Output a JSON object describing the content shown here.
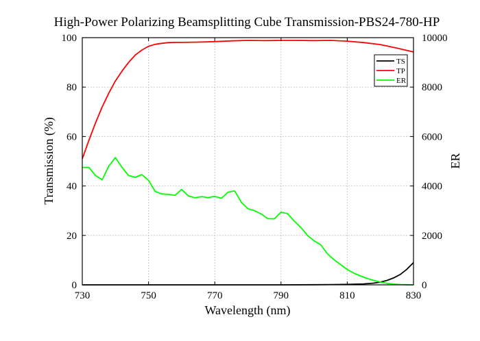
{
  "chart_data": {
    "type": "line",
    "title": "High-Power Polarizing Beamsplitting Cube Transmission-PBS24-780-HP",
    "xlabel": "Wavelength (nm)",
    "ylabel": "Transmission (%)",
    "y2label": "ER",
    "xlim": [
      730,
      830
    ],
    "ylim": [
      0,
      100
    ],
    "y2lim": [
      0,
      10000
    ],
    "xticks": [
      "730",
      "750",
      "770",
      "790",
      "810",
      "830"
    ],
    "yticks": [
      "0",
      "20",
      "40",
      "60",
      "80",
      "100"
    ],
    "y2ticks": [
      "0",
      "2000",
      "4000",
      "6000",
      "8000",
      "10000"
    ],
    "grid": true,
    "legend_position": "top-right",
    "series": [
      {
        "name": "TS",
        "color": "#000000",
        "axis": "left",
        "x": [
          730,
          760,
          790,
          800,
          805,
          810,
          815,
          818,
          820,
          822,
          824,
          826,
          828,
          830
        ],
        "y": [
          0,
          0,
          0,
          0.05,
          0.1,
          0.2,
          0.4,
          0.7,
          1.1,
          1.8,
          2.8,
          4.2,
          6.3,
          9.0
        ]
      },
      {
        "name": "TP",
        "color": "#ff0000",
        "axis": "left",
        "x": [
          730,
          732,
          734,
          736,
          738,
          740,
          742,
          744,
          746,
          748,
          750,
          752,
          754,
          756,
          758,
          760,
          765,
          770,
          775,
          780,
          785,
          790,
          795,
          800,
          805,
          810,
          815,
          820,
          825,
          830
        ],
        "y": [
          51,
          58.5,
          65.5,
          72,
          77.5,
          82.5,
          86.5,
          90,
          93,
          95,
          96.5,
          97.3,
          97.7,
          98,
          98.1,
          98.1,
          98.2,
          98.4,
          98.7,
          98.9,
          98.8,
          98.9,
          98.9,
          98.8,
          98.9,
          98.6,
          98.0,
          97.2,
          95.8,
          94.2
        ]
      },
      {
        "name": "ER",
        "color": "#00ff00",
        "axis": "right",
        "x": [
          730,
          732,
          734,
          736,
          738,
          740,
          742,
          744,
          746,
          748,
          750,
          752,
          754,
          756,
          758,
          760,
          762,
          764,
          766,
          768,
          770,
          772,
          774,
          776,
          778,
          780,
          782,
          784,
          786,
          788,
          790,
          792,
          794,
          796,
          798,
          800,
          802,
          804,
          806,
          808,
          810,
          812,
          814,
          816,
          818,
          820,
          822,
          824,
          826,
          828,
          830
        ],
        "y": [
          4750,
          4750,
          4420,
          4250,
          4800,
          5150,
          4750,
          4420,
          4350,
          4460,
          4230,
          3780,
          3680,
          3660,
          3620,
          3860,
          3600,
          3520,
          3570,
          3530,
          3580,
          3500,
          3750,
          3800,
          3350,
          3080,
          3000,
          2870,
          2680,
          2670,
          2940,
          2880,
          2580,
          2320,
          2000,
          1780,
          1620,
          1260,
          1020,
          820,
          620,
          470,
          360,
          260,
          180,
          110,
          60,
          30,
          15,
          5,
          0
        ]
      }
    ]
  }
}
